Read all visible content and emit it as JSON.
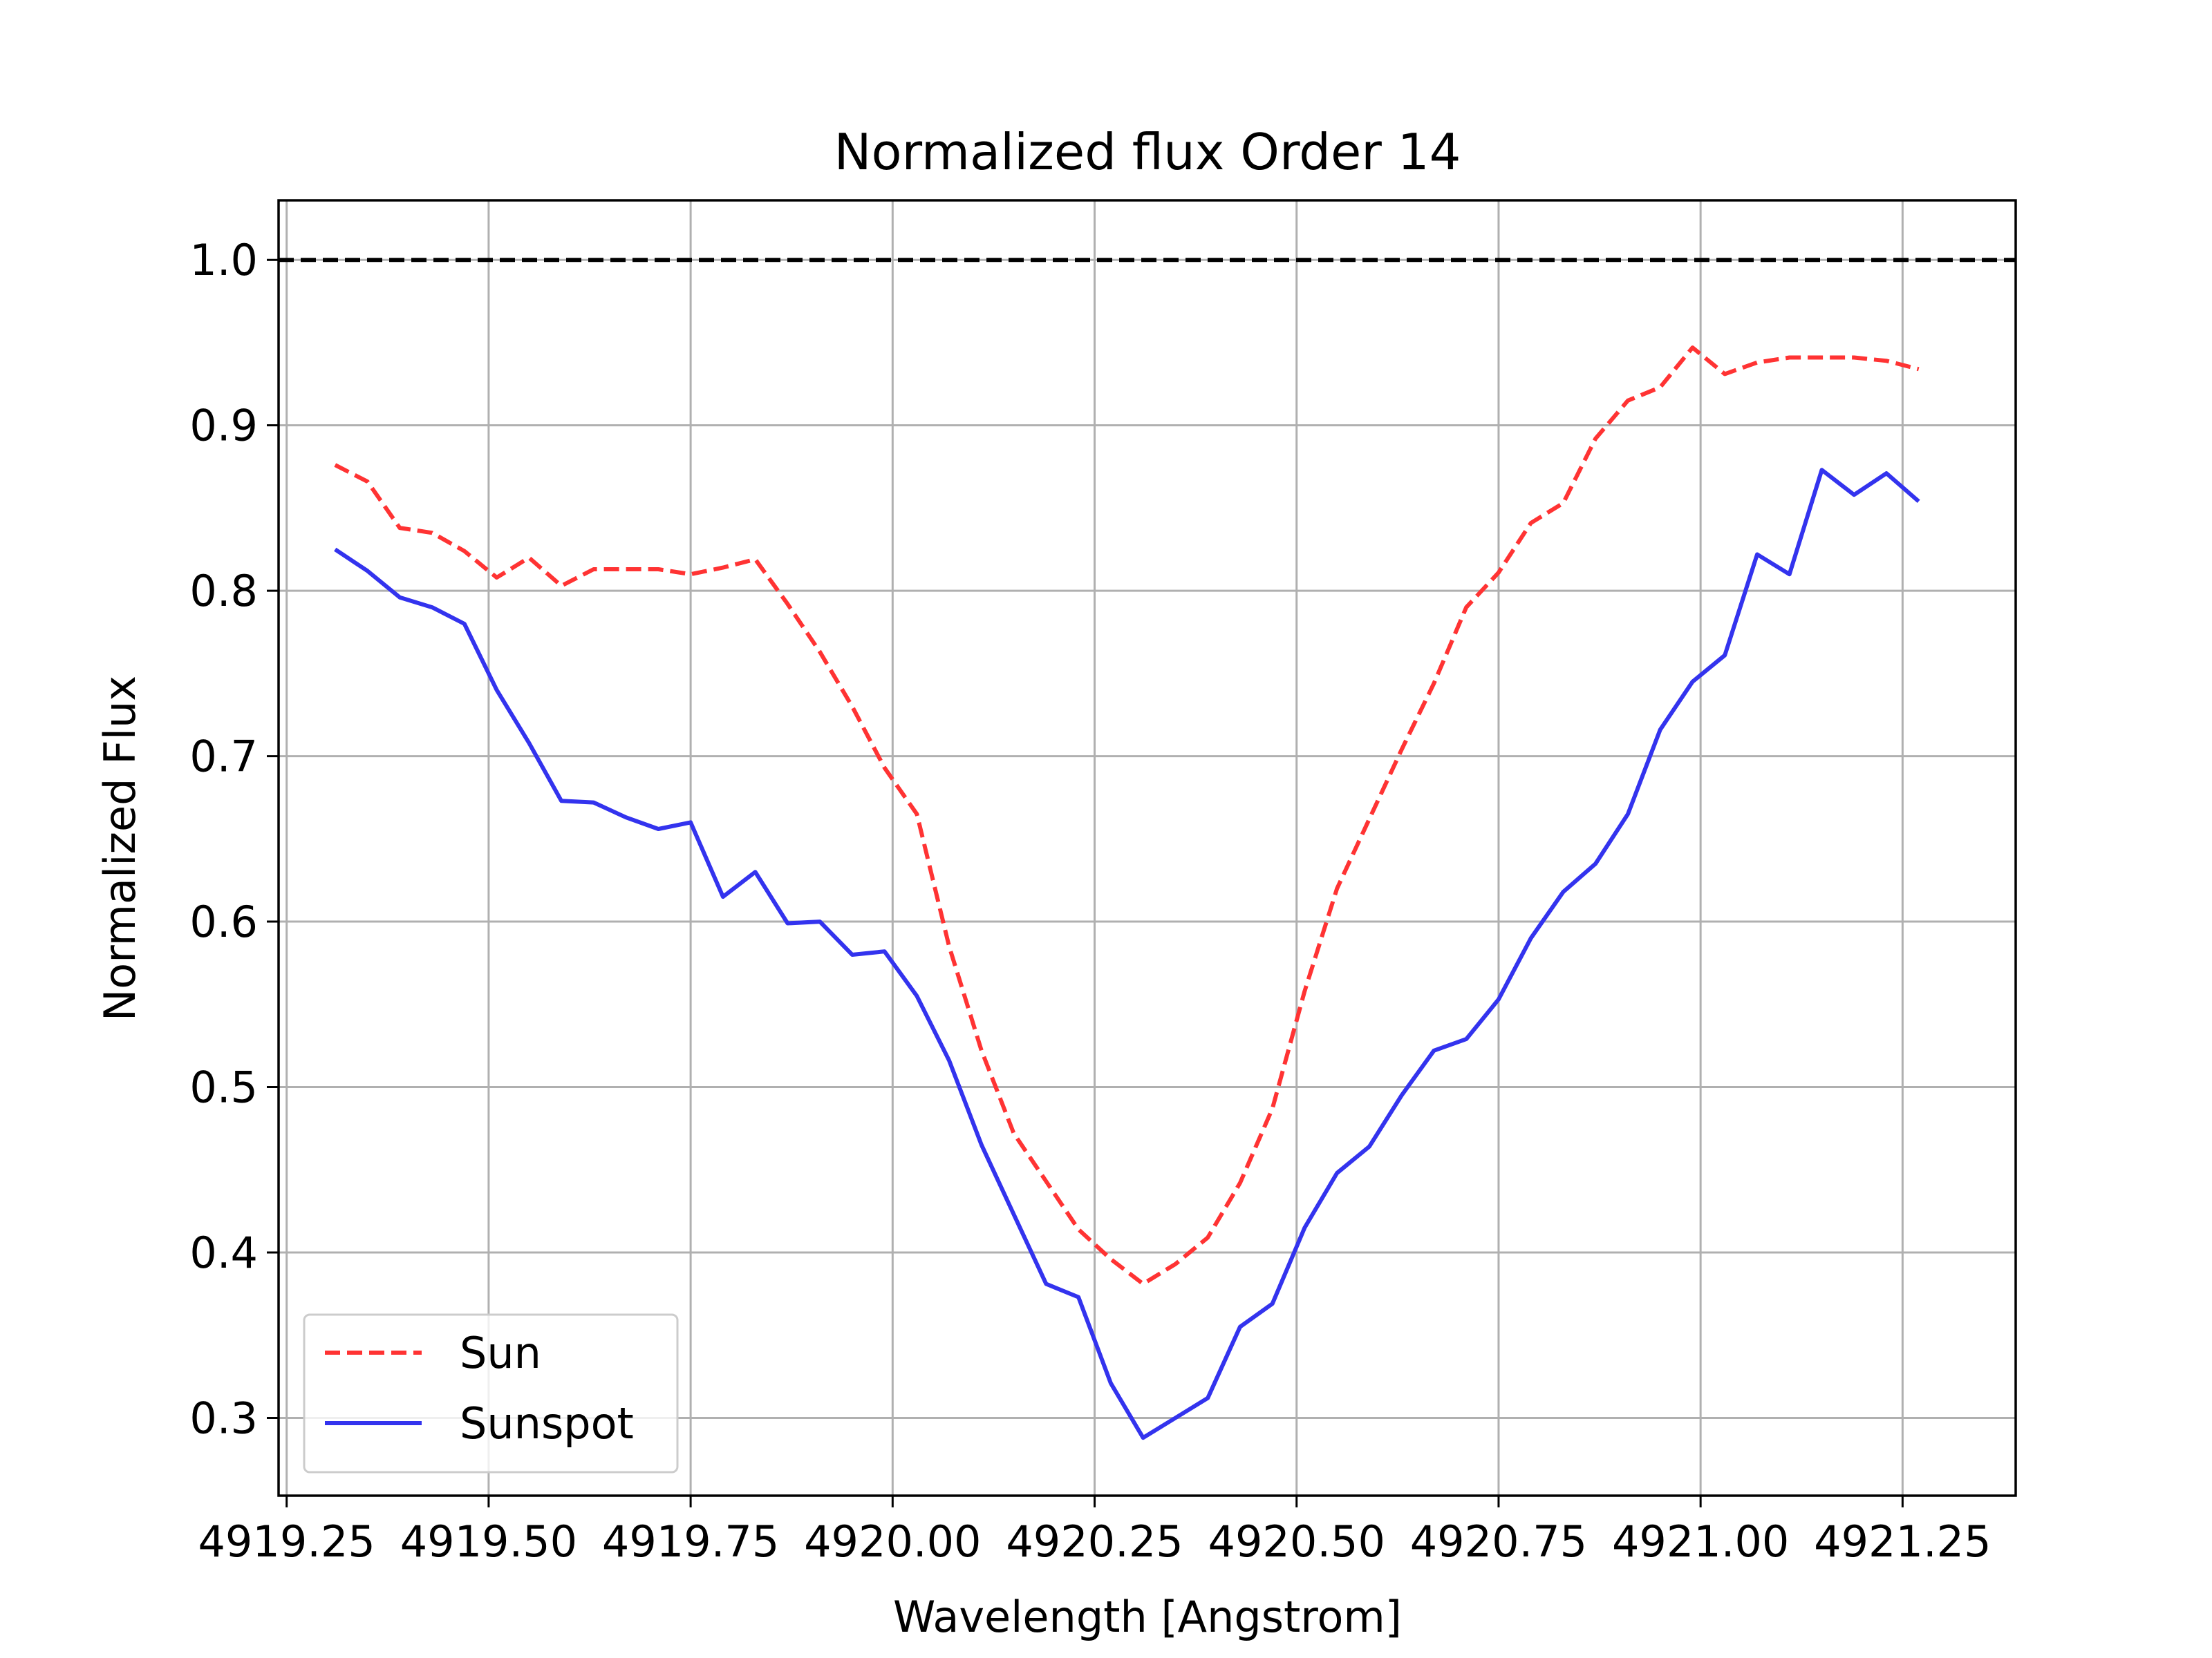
{
  "chart_data": {
    "type": "line",
    "title": "Normalized flux Order 14",
    "xlabel": "Wavelength [Angstrom]",
    "ylabel": "Normalized Flux",
    "xlim": [
      4919.24,
      4921.39
    ],
    "ylim": [
      0.253,
      1.036
    ],
    "grid": true,
    "legend_position": "lower-left",
    "x_ticks": [
      4919.25,
      4919.5,
      4919.75,
      4920.0,
      4920.25,
      4920.5,
      4920.75,
      4921.0,
      4921.25
    ],
    "x_tick_labels": [
      "4919.25",
      "4919.50",
      "4919.75",
      "4920.00",
      "4920.25",
      "4920.50",
      "4920.75",
      "4921.00",
      "4921.25"
    ],
    "y_ticks": [
      0.3,
      0.4,
      0.5,
      0.6,
      0.7,
      0.8,
      0.9,
      1.0
    ],
    "y_tick_labels": [
      "0.3",
      "0.4",
      "0.5",
      "0.6",
      "0.7",
      "0.8",
      "0.9",
      "1.0"
    ],
    "reference_line": {
      "y": 1.0,
      "color": "#000000",
      "style": "dashed"
    },
    "x": [
      4919.31,
      4919.35,
      4919.39,
      4919.43,
      4919.47,
      4919.51,
      4919.55,
      4919.59,
      4919.63,
      4919.67,
      4919.71,
      4919.75,
      4919.79,
      4919.83,
      4919.87,
      4919.91,
      4919.95,
      4919.99,
      4920.03,
      4920.07,
      4920.11,
      4920.15,
      4920.19,
      4920.23,
      4920.27,
      4920.31,
      4920.35,
      4920.39,
      4920.43,
      4920.47,
      4920.51,
      4920.55,
      4920.59,
      4920.63,
      4920.67,
      4920.71,
      4920.75,
      4920.79,
      4920.83,
      4920.87,
      4920.91,
      4920.95,
      4920.99,
      4921.03,
      4921.07,
      4921.11,
      4921.15,
      4921.19,
      4921.23,
      4921.27
    ],
    "series": [
      {
        "name": "Sun",
        "color": "#ff3333",
        "style": "dashed",
        "values": [
          0.876,
          0.866,
          0.838,
          0.835,
          0.824,
          0.808,
          0.82,
          0.803,
          0.813,
          0.813,
          0.813,
          0.81,
          0.814,
          0.819,
          0.792,
          0.763,
          0.73,
          0.693,
          0.665,
          0.585,
          0.522,
          0.472,
          0.443,
          0.414,
          0.396,
          0.381,
          0.393,
          0.409,
          0.442,
          0.487,
          0.558,
          0.62,
          0.662,
          0.704,
          0.744,
          0.79,
          0.811,
          0.841,
          0.853,
          0.892,
          0.915,
          0.923,
          0.947,
          0.931,
          0.938,
          0.941,
          0.941,
          0.941,
          0.939,
          0.934
        ]
      },
      {
        "name": "Sunspot",
        "color": "#3333ee",
        "style": "solid",
        "values": [
          0.825,
          0.812,
          0.796,
          0.79,
          0.78,
          0.74,
          0.708,
          0.673,
          0.672,
          0.663,
          0.656,
          0.66,
          0.615,
          0.63,
          0.599,
          0.6,
          0.58,
          0.582,
          0.555,
          0.516,
          0.465,
          0.423,
          0.381,
          0.373,
          0.321,
          0.288,
          0.3,
          0.312,
          0.355,
          0.369,
          0.415,
          0.448,
          0.464,
          0.495,
          0.522,
          0.529,
          0.553,
          0.59,
          0.618,
          0.635,
          0.665,
          0.716,
          0.745,
          0.761,
          0.822,
          0.81,
          0.873,
          0.858,
          0.871,
          0.854
        ]
      }
    ]
  }
}
